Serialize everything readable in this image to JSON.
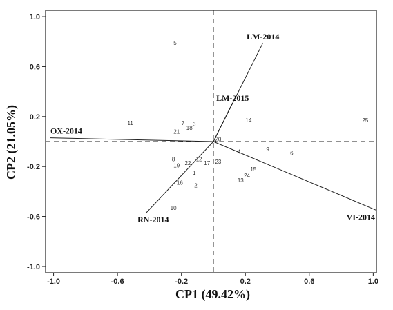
{
  "chart_data": {
    "type": "scatter",
    "title": "",
    "xlabel": "CP1 (49.42%)",
    "ylabel": "CP2 (21.05%)",
    "xlim": [
      -1.05,
      1.02
    ],
    "ylim": [
      -1.05,
      1.05
    ],
    "x_ticks": [
      -1.0,
      -0.6,
      -0.2,
      0.2,
      0.6,
      1.0
    ],
    "x_tick_labels": [
      "-1.0",
      "-0.6",
      "-0.2",
      "0.2",
      "0.6",
      "1.0"
    ],
    "y_ticks": [
      1.0,
      0.6,
      0.2,
      -0.2,
      -0.6,
      -1.0
    ],
    "y_tick_labels": [
      "1.0",
      "0.6",
      "0.2",
      "-0.2",
      "-0.6",
      "-1.0"
    ],
    "reference_lines": {
      "x": 0,
      "y": 0,
      "style": "dashed"
    },
    "points": [
      {
        "label": "1",
        "x": -0.12,
        "y": -0.25
      },
      {
        "label": "2",
        "x": -0.11,
        "y": -0.35
      },
      {
        "label": "3",
        "x": -0.12,
        "y": 0.14
      },
      {
        "label": "4",
        "x": 0.16,
        "y": -0.08
      },
      {
        "label": "5",
        "x": -0.24,
        "y": 0.79
      },
      {
        "label": "6",
        "x": 0.49,
        "y": -0.09
      },
      {
        "label": "7",
        "x": -0.19,
        "y": 0.15
      },
      {
        "label": "8",
        "x": -0.25,
        "y": -0.14
      },
      {
        "label": "9",
        "x": 0.34,
        "y": -0.06
      },
      {
        "label": "10",
        "x": -0.25,
        "y": -0.53
      },
      {
        "label": "11",
        "x": -0.52,
        "y": 0.15
      },
      {
        "label": "12",
        "x": -0.09,
        "y": -0.14
      },
      {
        "label": "13",
        "x": 0.17,
        "y": -0.31
      },
      {
        "label": "14",
        "x": 0.22,
        "y": 0.17
      },
      {
        "label": "15",
        "x": 0.25,
        "y": -0.22
      },
      {
        "label": "16",
        "x": -0.21,
        "y": -0.33
      },
      {
        "label": "17",
        "x": -0.04,
        "y": -0.17
      },
      {
        "label": "18",
        "x": -0.15,
        "y": 0.11
      },
      {
        "label": "19",
        "x": -0.23,
        "y": -0.19
      },
      {
        "label": "20",
        "x": 0.03,
        "y": 0.02
      },
      {
        "label": "21",
        "x": -0.23,
        "y": 0.08
      },
      {
        "label": "22",
        "x": -0.16,
        "y": -0.17
      },
      {
        "label": "23",
        "x": 0.03,
        "y": -0.16
      },
      {
        "label": "24",
        "x": 0.21,
        "y": -0.27
      },
      {
        "label": "25",
        "x": 0.95,
        "y": 0.17
      }
    ],
    "vectors": [
      {
        "label": "LM-2014",
        "x": 0.31,
        "y": 0.79
      },
      {
        "label": "LM-2015",
        "x": 0.12,
        "y": 0.31
      },
      {
        "label": "OX-2014",
        "x": -1.02,
        "y": 0.03
      },
      {
        "label": "RN-2014",
        "x": -0.42,
        "y": -0.57
      },
      {
        "label": "VI-2014",
        "x": 1.02,
        "y": -0.55
      }
    ]
  }
}
